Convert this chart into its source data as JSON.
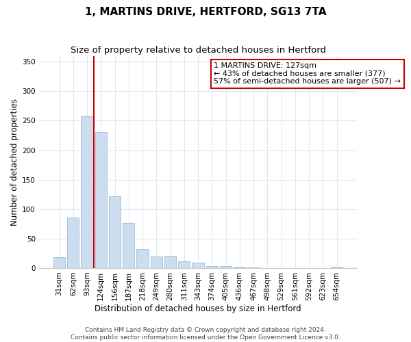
{
  "title": "1, MARTINS DRIVE, HERTFORD, SG13 7TA",
  "subtitle": "Size of property relative to detached houses in Hertford",
  "xlabel": "Distribution of detached houses by size in Hertford",
  "ylabel": "Number of detached properties",
  "bar_labels": [
    "31sqm",
    "62sqm",
    "93sqm",
    "124sqm",
    "156sqm",
    "187sqm",
    "218sqm",
    "249sqm",
    "280sqm",
    "311sqm",
    "343sqm",
    "374sqm",
    "405sqm",
    "436sqm",
    "467sqm",
    "498sqm",
    "529sqm",
    "561sqm",
    "592sqm",
    "623sqm",
    "654sqm"
  ],
  "bar_values": [
    19,
    86,
    257,
    231,
    122,
    77,
    33,
    20,
    21,
    11,
    9,
    4,
    3,
    2,
    1,
    0,
    0,
    0,
    0,
    0,
    2
  ],
  "bar_color": "#ccddf0",
  "bar_edge_color": "#9bbcd8",
  "vline_x_index": 3,
  "vline_color": "#cc0000",
  "annotation_line1": "1 MARTINS DRIVE: 127sqm",
  "annotation_line2": "← 43% of detached houses are smaller (377)",
  "annotation_line3": "57% of semi-detached houses are larger (507) →",
  "annotation_box_color": "#ffffff",
  "annotation_box_edge_color": "#cc0000",
  "ylim": [
    0,
    360
  ],
  "yticks": [
    0,
    50,
    100,
    150,
    200,
    250,
    300,
    350
  ],
  "footer_line1": "Contains HM Land Registry data © Crown copyright and database right 2024.",
  "footer_line2": "Contains public sector information licensed under the Open Government Licence v3.0.",
  "background_color": "#ffffff",
  "grid_color": "#dce8f5",
  "title_fontsize": 11,
  "subtitle_fontsize": 9.5,
  "axis_label_fontsize": 8.5,
  "tick_fontsize": 7.5,
  "annotation_fontsize": 8,
  "footer_fontsize": 6.5
}
